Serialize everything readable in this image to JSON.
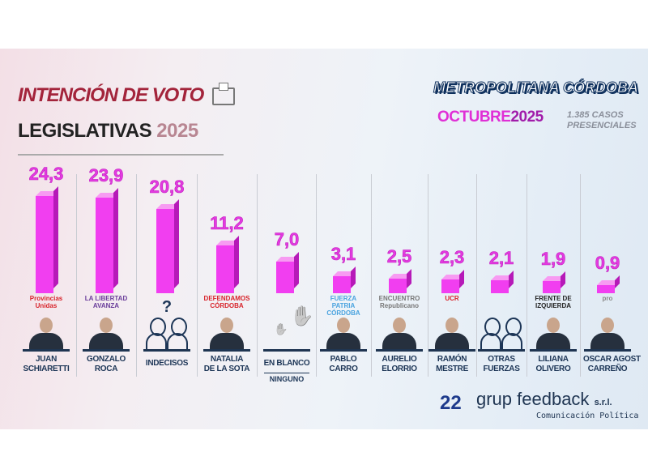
{
  "header": {
    "title_line1": "INTENCIÓN DE VOTO",
    "title_line2": "LEGISLATIVAS",
    "title_year": "2025",
    "region": "METROPOLITANA CÓRDOBA",
    "month": "OCTUBRE",
    "month_year": "2025",
    "cases_line1": "1.385 CASOS",
    "cases_line2": "PRESENCIALES"
  },
  "footer": {
    "anniversary": "22",
    "brand": "grup feedback",
    "brand_suffix": "s.r.l.",
    "brand_sub": "Comunicación Política"
  },
  "colors": {
    "bar": "#f13ef0",
    "value_text": "#e33be0",
    "name_text": "#1c3556",
    "title_red": "#a3243b"
  },
  "chart_data": {
    "type": "bar",
    "categories": [
      "JUAN SCHIARETTI",
      "GONZALO ROCA",
      "INDECISOS",
      "NATALIA DE LA SOTA",
      "EN BLANCO",
      "PABLO CARRO",
      "AURELIO ELORRIO",
      "RAMÓN MESTRE",
      "OTRAS FUERZAS",
      "LILIANA OLIVERO",
      "OSCAR AGOST CARREÑO"
    ],
    "values": [
      24.3,
      23.9,
      20.8,
      11.2,
      7.0,
      3.1,
      2.5,
      2.3,
      2.1,
      1.9,
      0.9
    ],
    "labels": [
      "24,3",
      "23,9",
      "20,8",
      "11,2",
      "7,0",
      "3,1",
      "2,5",
      "2,3",
      "2,1",
      "1,9",
      "0,9"
    ],
    "ylim": [
      0,
      25
    ],
    "grid": false
  },
  "columns": [
    {
      "name_l1": "JUAN",
      "name_l2": "SCHIARETTI",
      "party": "Provincias Unidas",
      "party_color": "#d8232a",
      "kind": "person"
    },
    {
      "name_l1": "GONZALO",
      "name_l2": "ROCA",
      "party": "LA LIBERTAD AVANZA",
      "party_color": "#6a3d9a",
      "kind": "person"
    },
    {
      "name_l1": "INDECISOS",
      "name_l2": "",
      "party": "?",
      "party_color": "#1c3556",
      "kind": "undecided"
    },
    {
      "name_l1": "NATALIA",
      "name_l2": "DE LA SOTA",
      "party": "DEFENDAMOS CÓRDOBA",
      "party_color": "#d8232a",
      "kind": "person"
    },
    {
      "name_l1": "EN BLANCO",
      "name_l2": "",
      "sub": "NINGUNO",
      "party": "",
      "party_color": "#1c3556",
      "kind": "blank"
    },
    {
      "name_l1": "PABLO",
      "name_l2": "CARRO",
      "party": "FUERZA PATRIA CÓRDOBA",
      "party_color": "#4aa3df",
      "kind": "person"
    },
    {
      "name_l1": "AURELIO",
      "name_l2": "ELORRIO",
      "party": "ENCUENTRO Republicano",
      "party_color": "#777777",
      "kind": "person"
    },
    {
      "name_l1": "RAMÓN",
      "name_l2": "MESTRE",
      "party": "UCR",
      "party_color": "#d8232a",
      "kind": "person"
    },
    {
      "name_l1": "OTRAS",
      "name_l2": "FUERZAS",
      "party": "",
      "party_color": "#1c3556",
      "kind": "others"
    },
    {
      "name_l1": "LILIANA",
      "name_l2": "OLIVERO",
      "party": "FRENTE DE IZQUIERDA",
      "party_color": "#222222",
      "kind": "person"
    },
    {
      "name_l1": "OSCAR AGOST",
      "name_l2": "CARREÑO",
      "party": "pro",
      "party_color": "#8a8a8a",
      "kind": "person"
    }
  ]
}
